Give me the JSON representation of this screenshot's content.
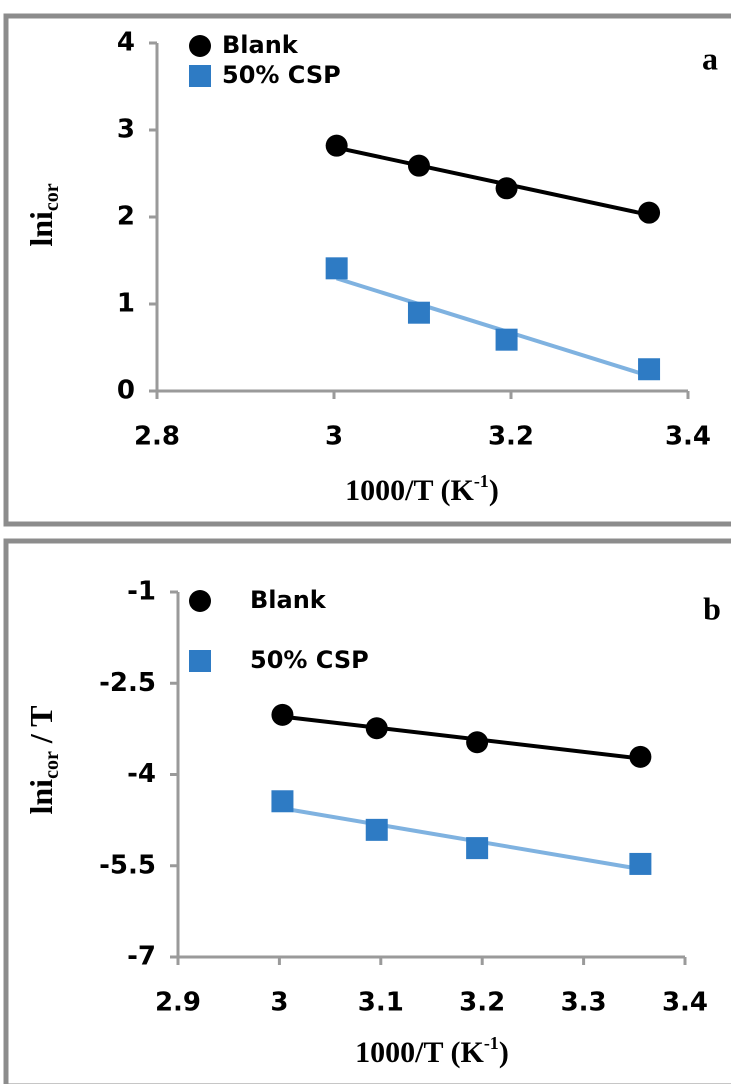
{
  "chart_data": [
    {
      "type": "scatter",
      "panel_label": "a",
      "x_label": [
        "1000/T (K",
        "-1",
        ")"
      ],
      "y_label": [
        "lni",
        "cor"
      ],
      "x": [
        3.003,
        3.096,
        3.195,
        3.356
      ],
      "series": [
        {
          "name": "Blank",
          "color": "#000000",
          "marker": "circle",
          "values": [
            2.82,
            2.59,
            2.33,
            2.05
          ]
        },
        {
          "name": "50% CSP",
          "color": "#2e7bc4",
          "line_color": "#7fb2e0",
          "marker": "square",
          "values": [
            1.41,
            0.9,
            0.59,
            0.25
          ]
        }
      ],
      "xlim": [
        2.8,
        3.4
      ],
      "xticks": [
        2.8,
        3,
        3.2,
        3.4
      ],
      "ylim": [
        0,
        4
      ],
      "yticks": [
        0,
        1,
        2,
        3,
        4
      ],
      "trendline": true
    },
    {
      "type": "scatter",
      "panel_label": "b",
      "x_label": [
        "1000/T (K",
        "-1",
        ")"
      ],
      "y_label": [
        "lni",
        "cor",
        "  / T"
      ],
      "x": [
        3.003,
        3.096,
        3.195,
        3.356
      ],
      "series": [
        {
          "name": "Blank",
          "color": "#000000",
          "marker": "circle",
          "values": [
            -3.02,
            -3.24,
            -3.47,
            -3.71
          ]
        },
        {
          "name": "50% CSP",
          "color": "#2e7bc4",
          "line_color": "#7fb2e0",
          "marker": "square",
          "values": [
            -4.44,
            -4.91,
            -5.21,
            -5.47
          ]
        }
      ],
      "xlim": [
        2.9,
        3.4
      ],
      "xticks": [
        2.9,
        3,
        3.1,
        3.2,
        3.3,
        3.4
      ],
      "ylim": [
        -7,
        -1
      ],
      "yticks": [
        -7,
        -5.5,
        -4,
        -2.5,
        -1
      ],
      "trendline": true
    }
  ]
}
